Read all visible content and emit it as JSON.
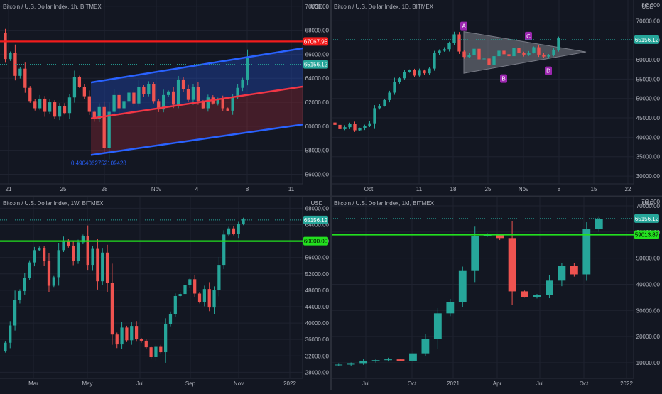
{
  "colors": {
    "bg": "#131722",
    "grid": "#1f2330",
    "text": "#b2b5be",
    "up": "#26a69a",
    "down": "#ef5350",
    "price_tag": "#26a69a",
    "red_level": "#f21c1c",
    "green_level": "#23e01f",
    "channel_blue": "#2962ff",
    "channel_red": "#f23645",
    "pattern": "#9c27b0"
  },
  "chart_data": [
    {
      "type": "candlestick",
      "title": "Bitcoin / U.S. Dollar Index, 1h, BITMEX",
      "currency": "USD",
      "xticks": [
        "21",
        "25",
        "28",
        "Nov",
        "4",
        "8",
        "11"
      ],
      "yticks": [
        56000,
        58000,
        60000,
        62000,
        64000,
        66000,
        68000,
        70000
      ],
      "ylim": [
        55200,
        70400
      ],
      "last_price": "65156.12",
      "level": {
        "label": "67067.95",
        "value": 67067.95
      },
      "channel_label": "0.4904062752109428",
      "regression_channel": {
        "upper_start": 63650,
        "upper_end": 66500,
        "mid_start": 60650,
        "mid_end": 63300,
        "lower_start": 57600,
        "lower_end": 60150
      },
      "ohlc_path": [
        67800,
        65600,
        66100,
        64200,
        64800,
        63200,
        62100,
        61500,
        62300,
        61200,
        62000,
        60800,
        61700,
        61100,
        62400,
        64100,
        63300,
        62500,
        61200,
        60600,
        61600,
        58200,
        61200,
        62600,
        61500,
        62100,
        62800,
        61900,
        63300,
        62700,
        63500,
        62100,
        61400,
        62600,
        62900,
        61800,
        63900,
        63100,
        62200,
        63300,
        62100,
        61500,
        62400,
        61900,
        62300,
        61500,
        61300,
        62400,
        63200,
        63900,
        65800
      ]
    },
    {
      "type": "candlestick",
      "title": "Bitcoin / U.S. Dollar Index, 1D, BITMEX",
      "currency": "USD",
      "xticks": [
        "Oct",
        "11",
        "18",
        "25",
        "Nov",
        "8",
        "15",
        "22"
      ],
      "yticks": [
        30000,
        35000,
        40000,
        45000,
        50000,
        55000,
        60000,
        65000,
        70000,
        75000
      ],
      "ylim": [
        28000,
        75000
      ],
      "top_tick": "8C 000",
      "last_price": "65156.12",
      "pattern_labels": [
        "A",
        "B",
        "C",
        "D"
      ],
      "ohlc_path": [
        43800,
        43200,
        42100,
        42600,
        43500,
        41800,
        42300,
        42900,
        43600,
        47500,
        48100,
        49600,
        51500,
        54300,
        55200,
        56800,
        57300,
        55900,
        57200,
        56500,
        57700,
        61700,
        62300,
        62700,
        64300,
        66500,
        62100,
        60700,
        61200,
        62800,
        60100,
        60300,
        58600,
        60900,
        62300,
        61400,
        60900,
        63100,
        61800,
        61300,
        61800,
        63200,
        61300,
        60800,
        61200,
        62500,
        65500
      ]
    },
    {
      "type": "candlestick",
      "title": "Bitcoin / U.S. Dollar Index, 1W, BITMEX",
      "currency": "USD",
      "xticks": [
        "Mar",
        "May",
        "Jul",
        "Sep",
        "Nov",
        "2022"
      ],
      "yticks": [
        28000,
        32000,
        36000,
        40000,
        44000,
        48000,
        52000,
        56000,
        60000,
        64000,
        68000
      ],
      "ylim": [
        26500,
        70500
      ],
      "last_price": "65156.12",
      "level": {
        "label": "60000.00",
        "value": 60000
      },
      "ohlc_path": [
        33100,
        35200,
        39400,
        45600,
        47800,
        51100,
        54800,
        57800,
        58200,
        55100,
        49100,
        51200,
        57800,
        60200,
        58900,
        55100,
        59700,
        61200,
        54200,
        58100,
        50200,
        57200,
        49800,
        37200,
        34800,
        38900,
        35800,
        39300,
        36100,
        35700,
        34100,
        31700,
        34200,
        32900,
        39800,
        42100,
        46600,
        47100,
        49200,
        50700,
        47200,
        45100,
        48300,
        43800,
        48100,
        54200,
        61600,
        63100,
        61700,
        64200,
        65300
      ]
    },
    {
      "type": "candlestick",
      "title": "Bitcoin / U.S. Dollar Index, 1M, BITMEX",
      "currency": "USD",
      "xticks": [
        "Jul",
        "Oct",
        "2021",
        "Apr",
        "Jul",
        "Oct",
        "2022"
      ],
      "yticks": [
        10000,
        20000,
        30000,
        40000,
        50000,
        60000,
        70000
      ],
      "ylim": [
        4000,
        73000
      ],
      "top_tick": "7C 000",
      "last_price": "65156.12",
      "level": {
        "label": "59013.87",
        "value": 59013.87
      },
      "ohlc_path": [
        9100,
        9300,
        9600,
        10800,
        11000,
        11300,
        10800,
        13600,
        19000,
        28900,
        33100,
        45100,
        58600,
        58800,
        57700,
        37300,
        35200,
        35800,
        41400,
        47100,
        43800,
        61300,
        65100
      ]
    }
  ]
}
